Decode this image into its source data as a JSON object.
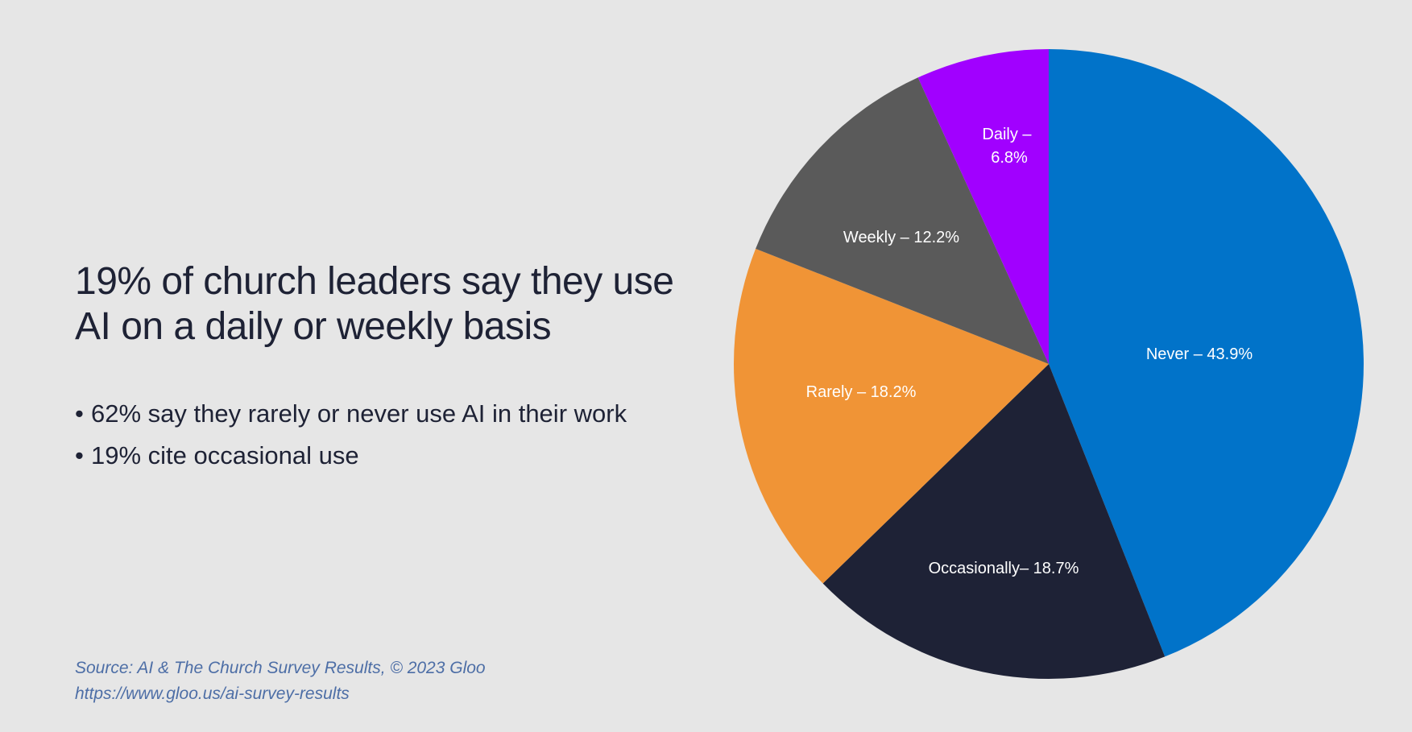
{
  "headline": {
    "line1": "19% of church leaders say they use",
    "line2": "AI on a daily or weekly basis"
  },
  "bullets": [
    {
      "marker": "•",
      "text": "62% say they rarely or never use AI in their work"
    },
    {
      "marker": "•",
      "text": "19% cite occasional use"
    }
  ],
  "source": {
    "line1": "Source: AI & The Church Survey Results, © 2023 Gloo",
    "line2": "https://www.gloo.us/ai-survey-results"
  },
  "chart_data": {
    "type": "pie",
    "title": "19% of church leaders say they use AI on a daily or weekly basis",
    "start": "top",
    "direction": "clockwise",
    "unit": "%",
    "slices": [
      {
        "name": "Never",
        "value": 43.9,
        "label": "Never – 43.9%",
        "color": "#0173c9"
      },
      {
        "name": "Occasionally",
        "value": 18.7,
        "label": "Occasionally– 18.7%",
        "color": "#1e2236"
      },
      {
        "name": "Rarely",
        "value": 18.2,
        "label": "Rarely – 18.2%",
        "color": "#f09436"
      },
      {
        "name": "Weekly",
        "value": 12.2,
        "label": "Weekly – 12.2%",
        "color": "#5a5a5a"
      },
      {
        "name": "Daily",
        "value": 6.8,
        "label_lines": [
          "Daily –",
          "6.8%"
        ],
        "color": "#a100ff"
      }
    ]
  }
}
